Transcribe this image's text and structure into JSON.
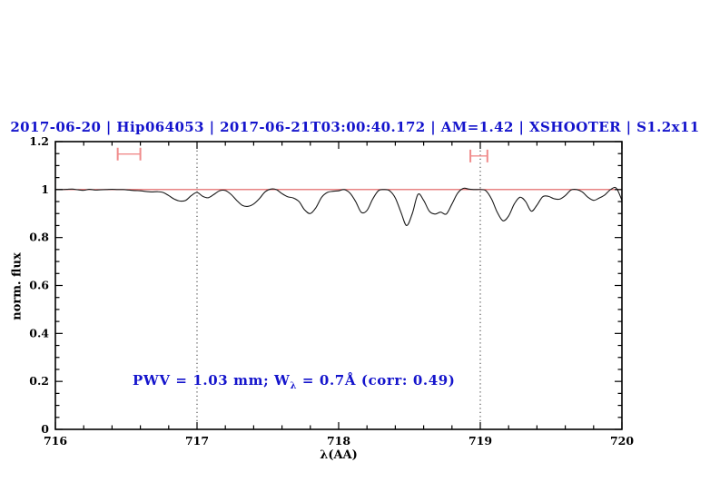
{
  "title": {
    "text": "2017-06-20 | Hip064053 | 2017-06-21T03:00:40.172 | AM=1.42 | XSHOOTER | S1.2x11",
    "color": "#1414cc"
  },
  "annotation": {
    "prefix": "PWV = 1.03 mm; W",
    "sub": "λ",
    "suffix": " = 0.7Å (corr: 0.49)",
    "color": "#1414cc",
    "pwv_mm": 1.03,
    "w_lambda_aa": 0.7,
    "corr": 0.49
  },
  "axes": {
    "x_label": "λ(AA)",
    "y_label": "norm. flux"
  },
  "chart_data": {
    "type": "line",
    "title": "2017-06-20 | Hip064053 | 2017-06-21T03:00:40.172 | AM=1.42 | XSHOOTER | S1.2x11",
    "xlabel": "λ(AA)",
    "ylabel": "norm. flux",
    "xlim": [
      716,
      720
    ],
    "ylim": [
      0,
      1.2
    ],
    "grid": "off",
    "legend": "none",
    "x_major_ticks": [
      716,
      717,
      718,
      719,
      720
    ],
    "x_tick_labels": [
      "716",
      "717",
      "718",
      "719",
      "720"
    ],
    "x_minor_step": 0.2,
    "y_major_ticks": [
      0,
      0.2,
      0.4,
      0.6,
      0.8,
      1,
      1.2
    ],
    "y_tick_labels": [
      "0",
      "0.2",
      "0.4",
      "0.6",
      "0.8",
      "1",
      "1.2"
    ],
    "y_minor_step": 0.05,
    "dotted_guides_x": [
      717,
      719
    ],
    "series": [
      {
        "name": "continuum-line",
        "color": "#e05a5a",
        "width": 1.2,
        "x": [
          716,
          720
        ],
        "y": [
          1,
          1
        ]
      },
      {
        "name": "observed-spectrum",
        "color": "#1a1a1a",
        "width": 1.1,
        "x": [
          716.0,
          716.04,
          716.08,
          716.12,
          716.16,
          716.2,
          716.24,
          716.28,
          716.32,
          716.36,
          716.4,
          716.44,
          716.48,
          716.52,
          716.56,
          716.6,
          716.64,
          716.68,
          716.72,
          716.76,
          716.8,
          716.84,
          716.88,
          716.92,
          716.96,
          717.0,
          717.04,
          717.08,
          717.12,
          717.16,
          717.2,
          717.24,
          717.28,
          717.32,
          717.36,
          717.4,
          717.44,
          717.48,
          717.52,
          717.56,
          717.6,
          717.64,
          717.68,
          717.72,
          717.76,
          717.8,
          717.84,
          717.88,
          717.92,
          717.96,
          718.0,
          718.04,
          718.08,
          718.12,
          718.16,
          718.2,
          718.24,
          718.28,
          718.32,
          718.36,
          718.4,
          718.44,
          718.48,
          718.52,
          718.56,
          718.6,
          718.64,
          718.68,
          718.72,
          718.76,
          718.8,
          718.84,
          718.88,
          718.92,
          718.96,
          719.0,
          719.04,
          719.08,
          719.12,
          719.16,
          719.2,
          719.24,
          719.28,
          719.32,
          719.36,
          719.4,
          719.44,
          719.48,
          719.52,
          719.56,
          719.6,
          719.64,
          719.68,
          719.72,
          719.76,
          719.8,
          719.84,
          719.88,
          719.92,
          719.96,
          720.0
        ],
        "y": [
          1.0,
          1.0,
          1.001,
          1.002,
          0.999,
          0.997,
          1.001,
          0.998,
          0.999,
          1.0,
          1.001,
          1.0,
          1.0,
          0.998,
          0.996,
          0.995,
          0.992,
          0.99,
          0.991,
          0.988,
          0.975,
          0.96,
          0.952,
          0.955,
          0.975,
          0.988,
          0.972,
          0.966,
          0.98,
          0.995,
          0.996,
          0.98,
          0.955,
          0.934,
          0.93,
          0.94,
          0.962,
          0.99,
          1.002,
          1.0,
          0.983,
          0.97,
          0.965,
          0.95,
          0.915,
          0.9,
          0.925,
          0.968,
          0.988,
          0.993,
          0.995,
          1.0,
          0.985,
          0.95,
          0.905,
          0.913,
          0.96,
          0.995,
          1.0,
          0.995,
          0.965,
          0.905,
          0.85,
          0.9,
          0.98,
          0.955,
          0.91,
          0.898,
          0.906,
          0.898,
          0.94,
          0.985,
          1.005,
          1.002,
          1.0,
          1.0,
          0.995,
          0.96,
          0.905,
          0.87,
          0.89,
          0.94,
          0.968,
          0.95,
          0.91,
          0.935,
          0.97,
          0.972,
          0.962,
          0.96,
          0.975,
          0.998,
          1.0,
          0.99,
          0.968,
          0.955,
          0.965,
          0.978,
          1.0,
          1.006,
          0.955
        ]
      }
    ],
    "error_bars": [
      {
        "x_min": 716.44,
        "x_max": 716.6,
        "y": 1.148,
        "color": "#f08b8b"
      },
      {
        "x_min": 718.93,
        "x_max": 719.05,
        "y": 1.14,
        "color": "#f08b8b"
      }
    ],
    "annotations": [
      {
        "text": "PWV = 1.03 mm; Wλ = 0.7Å (corr: 0.49)",
        "x": 716.55,
        "y": 0.2,
        "color": "#1414cc"
      }
    ]
  }
}
